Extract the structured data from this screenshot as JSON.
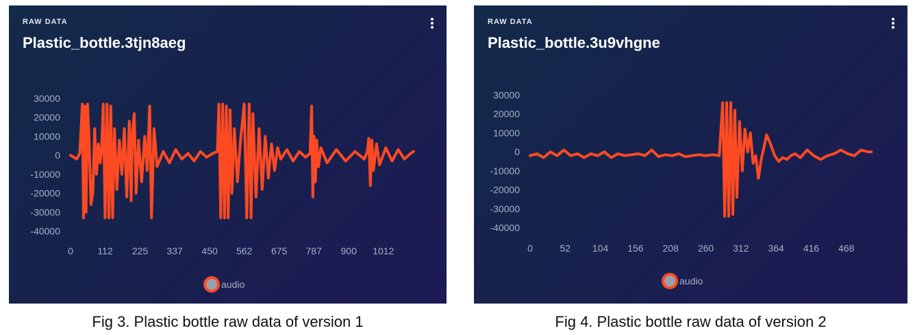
{
  "colors": {
    "series": "#fd4a23",
    "legend_fill": "#9aa0ab",
    "axis_text": "#a7afc4",
    "title": "#ffffff"
  },
  "panels": [
    {
      "raw_label": "RAW DATA",
      "title": "Plastic_bottle.3tjn8aeg",
      "menu_icon": "kebab-menu-icon",
      "caption": "Fig 3. Plastic bottle raw data of version 1"
    },
    {
      "raw_label": "RAW DATA",
      "title": "Plastic_bottle.3u9vhgne",
      "menu_icon": "kebab-menu-icon",
      "caption": "Fig 4. Plastic bottle raw data of version 2"
    }
  ],
  "chart_data": [
    {
      "type": "line",
      "ylim": [
        -40000,
        30000
      ],
      "yticks": [
        "30000",
        "20000",
        "10000",
        "0",
        "-10000",
        "-20000",
        "-30000",
        "-40000"
      ],
      "xlim": [
        0,
        1130
      ],
      "xticks": [
        "0",
        "112",
        "225",
        "337",
        "450",
        "562",
        "675",
        "787",
        "900",
        "1012"
      ],
      "legend": "audio",
      "series": [
        {
          "name": "audio",
          "x": [
            0,
            20,
            30,
            38,
            42,
            46,
            50,
            55,
            60,
            66,
            72,
            78,
            84,
            90,
            96,
            100,
            106,
            112,
            118,
            124,
            130,
            136,
            142,
            150,
            158,
            166,
            174,
            182,
            190,
            196,
            200,
            206,
            212,
            220,
            230,
            240,
            248,
            256,
            262,
            270,
            280,
            300,
            320,
            340,
            360,
            380,
            400,
            420,
            440,
            460,
            475,
            480,
            486,
            492,
            498,
            504,
            510,
            516,
            522,
            530,
            540,
            550,
            562,
            570,
            578,
            584,
            590,
            600,
            610,
            620,
            630,
            640,
            650,
            660,
            670,
            680,
            700,
            720,
            740,
            760,
            775,
            780,
            784,
            788,
            792,
            796,
            802,
            810,
            830,
            860,
            890,
            920,
            950,
            960,
            965,
            970,
            975,
            980,
            990,
            1000,
            1020,
            1040,
            1060,
            1080,
            1100,
            1110
          ],
          "values": [
            0,
            -2000,
            1000,
            27000,
            -33000,
            26000,
            -30000,
            27000,
            8000,
            -26000,
            -20000,
            14000,
            -10000,
            6000,
            -4000,
            2000,
            27000,
            -33000,
            27000,
            -33000,
            26000,
            -33000,
            14000,
            -18000,
            8000,
            -10000,
            14000,
            -22000,
            18000,
            -24000,
            12000,
            22000,
            -20000,
            8000,
            -14000,
            10000,
            -8000,
            26000,
            -33000,
            14000,
            -6000,
            2000,
            -4000,
            3000,
            -2000,
            1000,
            -3000,
            2000,
            -1000,
            1000,
            2000,
            27000,
            -33000,
            27000,
            -33000,
            26000,
            -33000,
            24000,
            -20000,
            14000,
            -14000,
            8000,
            27000,
            -33000,
            27000,
            -33000,
            22000,
            -22000,
            14000,
            -18000,
            10000,
            -12000,
            6000,
            -8000,
            4000,
            -2000,
            3000,
            -3000,
            2000,
            -1000,
            1000,
            26000,
            -22000,
            10000,
            -14000,
            8000,
            -6000,
            4000,
            -4000,
            3000,
            -3000,
            2000,
            -2000,
            2000,
            9000,
            -16000,
            8000,
            -8000,
            6000,
            -5000,
            4000,
            -3000,
            3000,
            -2000,
            1000,
            2000
          ]
        }
      ]
    },
    {
      "type": "line",
      "ylim": [
        -40000,
        30000
      ],
      "yticks": [
        "30000",
        "20000",
        "10000",
        "0",
        "-10000",
        "-20000",
        "-30000",
        "-40000"
      ],
      "xlim": [
        0,
        520
      ],
      "xticks": [
        "0",
        "52",
        "104",
        "156",
        "208",
        "260",
        "312",
        "364",
        "416",
        "468"
      ],
      "legend": "audio",
      "series": [
        {
          "name": "audio",
          "x": [
            0,
            10,
            20,
            30,
            40,
            50,
            60,
            70,
            80,
            90,
            100,
            110,
            120,
            130,
            140,
            150,
            160,
            170,
            180,
            190,
            200,
            210,
            220,
            230,
            240,
            250,
            260,
            270,
            280,
            285,
            288,
            291,
            294,
            297,
            300,
            303,
            306,
            310,
            314,
            318,
            322,
            326,
            330,
            334,
            338,
            342,
            346,
            350,
            356,
            362,
            368,
            374,
            380,
            386,
            392,
            400,
            410,
            420,
            430,
            440,
            450,
            460,
            470,
            480,
            490,
            500,
            505
          ],
          "values": [
            -2000,
            -1000,
            -3000,
            0,
            -2000,
            1000,
            -2000,
            -1000,
            -3000,
            -1000,
            -2000,
            0,
            -3000,
            -1000,
            -2000,
            -1500,
            -1000,
            -2000,
            1000,
            -2500,
            -1500,
            -2000,
            -1000,
            -2500,
            -2000,
            -1500,
            -2000,
            -1500,
            -2000,
            26000,
            -34000,
            26000,
            -34000,
            26000,
            -33000,
            22000,
            -24000,
            16000,
            -10000,
            12000,
            0,
            10000,
            -6000,
            -2000,
            -14000,
            -4000,
            2000,
            9000,
            4000,
            -2000,
            -5000,
            -3000,
            -4000,
            -2000,
            -1000,
            -3000,
            1000,
            -2000,
            -4000,
            -2000,
            -1000,
            1000,
            -1000,
            -2000,
            1000,
            0,
            0
          ]
        }
      ]
    }
  ]
}
